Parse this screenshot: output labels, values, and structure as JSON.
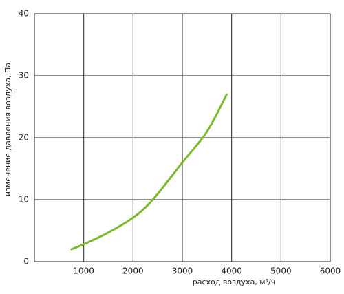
{
  "chart_data": {
    "type": "line",
    "x_label": "расход воздуха, м³/ч",
    "y_label": "изменение давления воздуха, Па",
    "x": [
      750,
      1000,
      1500,
      2000,
      2400,
      3000,
      3500,
      3900
    ],
    "values": [
      2.0,
      2.8,
      4.7,
      7.1,
      10,
      16,
      21,
      27
    ],
    "color": "#7ab929",
    "xlim": [
      0,
      6000
    ],
    "xticks": [
      1000,
      2000,
      3000,
      4000,
      5000,
      6000
    ],
    "ylim": [
      0,
      40
    ],
    "yticks": [
      0,
      10,
      20,
      30,
      40
    ],
    "grid": true
  }
}
